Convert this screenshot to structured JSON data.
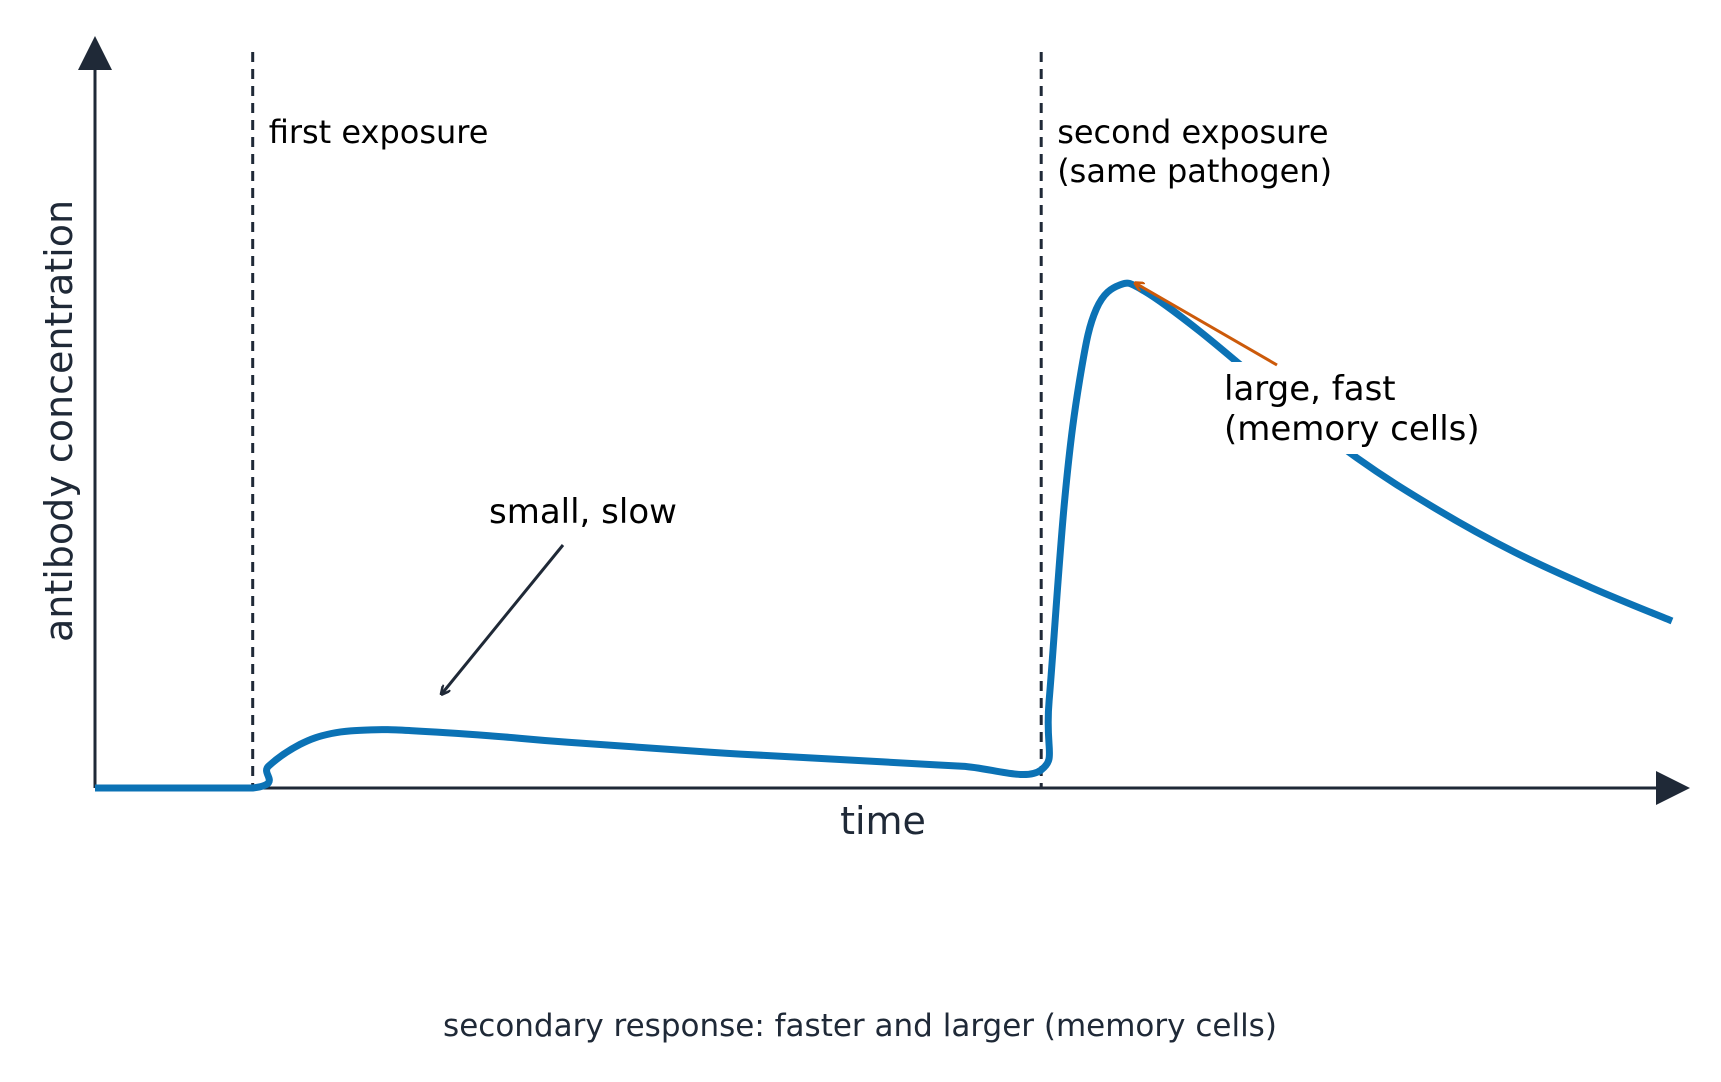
{
  "chart_data": {
    "type": "line",
    "title": "",
    "xlabel": "time",
    "ylabel": "antibody concentration",
    "xlim": [
      0,
      100
    ],
    "ylim": [
      0,
      100
    ],
    "grid": false,
    "legend": "none",
    "caption": "secondary response: faster and larger (memory cells)",
    "exposure_markers": [
      {
        "x": 10,
        "label_lines": [
          "first exposure"
        ]
      },
      {
        "x": 60,
        "label_lines": [
          "second exposure",
          "(same pathogen)"
        ]
      }
    ],
    "series": [
      {
        "color": "#0b72b5",
        "points": [
          [
            0,
            0
          ],
          [
            10,
            0
          ],
          [
            11,
            3
          ],
          [
            13,
            6
          ],
          [
            15,
            7.5
          ],
          [
            17.5,
            8
          ],
          [
            20,
            7.9
          ],
          [
            25,
            7.2
          ],
          [
            30,
            6.3
          ],
          [
            40,
            4.8
          ],
          [
            50,
            3.6
          ],
          [
            55,
            3.0
          ],
          [
            60,
            2.5
          ],
          [
            60.5,
            12
          ],
          [
            61.5,
            40
          ],
          [
            62.5,
            57
          ],
          [
            63.5,
            66
          ],
          [
            65,
            69.3
          ],
          [
            66.5,
            68.5
          ],
          [
            70,
            63
          ],
          [
            75,
            54
          ],
          [
            80,
            45.5
          ],
          [
            85,
            38.5
          ],
          [
            90,
            32.5
          ],
          [
            95,
            27.5
          ],
          [
            100,
            23
          ]
        ]
      }
    ],
    "annotations": [
      {
        "text": "small, slow",
        "color": "#1f2937",
        "points_to": [
          22,
          13
        ]
      },
      {
        "text_lines": [
          "large, fast",
          "(memory cells)"
        ],
        "color": "#cc5a0a",
        "points_to": [
          66,
          69.5
        ]
      }
    ]
  }
}
